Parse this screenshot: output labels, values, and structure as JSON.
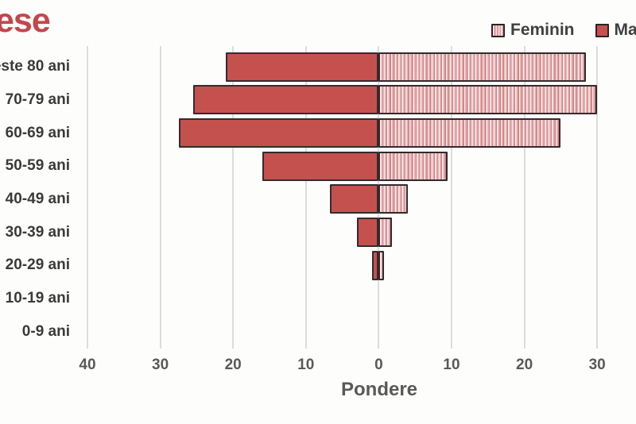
{
  "title": {
    "text": "ese"
  },
  "legend": {
    "items": [
      {
        "label": "Feminin",
        "swatch": "hatched"
      },
      {
        "label": "Ma",
        "swatch": "solid"
      }
    ]
  },
  "chart_data": {
    "type": "bar",
    "subtype": "population-pyramid",
    "orientation": "horizontal",
    "categories": [
      "este 80 ani",
      "70-79 ani",
      "60-69 ani",
      "50-59 ani",
      "40-49 ani",
      "30-39 ani",
      "20-29 ani",
      "10-19 ani",
      "0-9 ani"
    ],
    "series": [
      {
        "name": "Ma",
        "side": "left",
        "fill": "solid",
        "values": [
          21,
          25.5,
          27.5,
          16,
          6.7,
          3,
          0.9,
          0,
          0
        ]
      },
      {
        "name": "Feminin",
        "side": "right",
        "fill": "hatched",
        "values": [
          28.5,
          30,
          25,
          9.5,
          4,
          1.8,
          0.7,
          0,
          0
        ]
      }
    ],
    "xlabel": "Pondere",
    "x_ticks": [
      {
        "value": -40,
        "label": "40"
      },
      {
        "value": -30,
        "label": "30"
      },
      {
        "value": -20,
        "label": "20"
      },
      {
        "value": -10,
        "label": "10"
      },
      {
        "value": 0,
        "label": "0"
      },
      {
        "value": 10,
        "label": "10"
      },
      {
        "value": 20,
        "label": "20"
      },
      {
        "value": 30,
        "label": "30"
      }
    ],
    "grid": "vertical",
    "legend_position": "top-right",
    "colors": {
      "masculin_fill": "#c5514e",
      "feminin_base": "#e8abad",
      "bar_border": "#342a2d",
      "gridline": "#dcdcdc",
      "axis_text": "#595959",
      "category_text": "#3a3a3a",
      "title_text": "#c3464d"
    }
  }
}
